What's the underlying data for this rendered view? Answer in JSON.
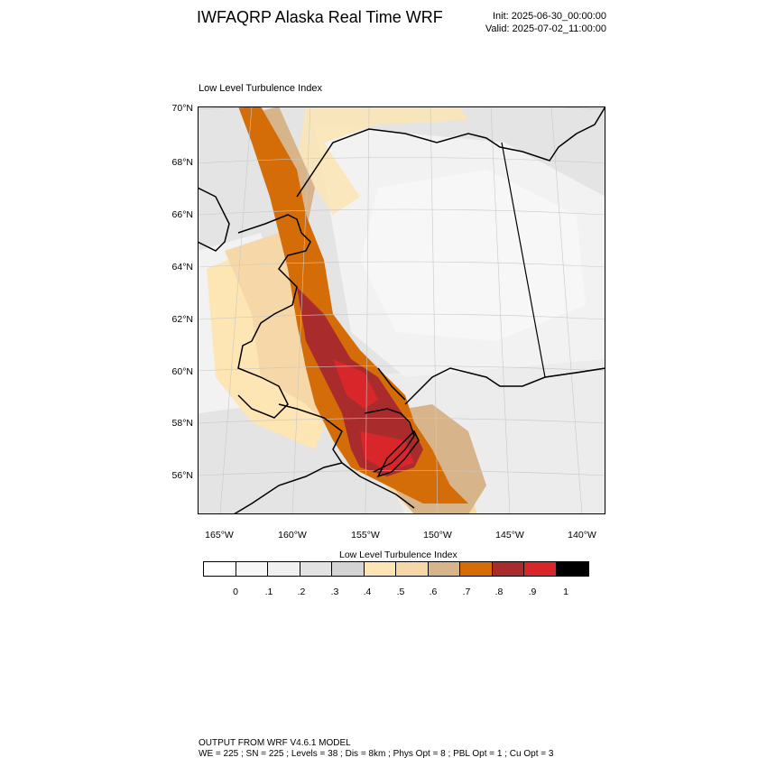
{
  "title": "IWFAQRP Alaska Real Time WRF",
  "init": "Init: 2025-06-30_00:00:00",
  "valid": "Valid: 2025-07-02_11:00:00",
  "subtitle": "Low Level Turbulence Index",
  "map": {
    "lat_labels": [
      "70°N",
      "68°N",
      "66°N",
      "64°N",
      "62°N",
      "60°N",
      "58°N",
      "56°N"
    ],
    "lon_labels": [
      "165°W",
      "160°W",
      "155°W",
      "150°W",
      "145°W",
      "140°W"
    ]
  },
  "colorbar": {
    "title": "Low Level Turbulence Index",
    "colors": [
      "#ffffff",
      "#f7f7f7",
      "#f0f0f0",
      "#e2e2e2",
      "#d4d4d4",
      "#fde5b4",
      "#f6d7a8",
      "#d8b48a",
      "#d46d08",
      "#aa2b2b",
      "#d9262a",
      "#000000"
    ],
    "labels": [
      "0",
      ".1",
      ".2",
      ".3",
      ".4",
      ".5",
      ".6",
      ".7",
      ".8",
      ".9",
      "1"
    ]
  },
  "footer": {
    "line1": "OUTPUT FROM WRF V4.6.1 MODEL",
    "line2": "WE = 225 ; SN = 225 ; Levels = 38 ; Dis = 8km ; Phys Opt = 8 ; PBL Opt = 1 ; Cu Opt = 3"
  }
}
